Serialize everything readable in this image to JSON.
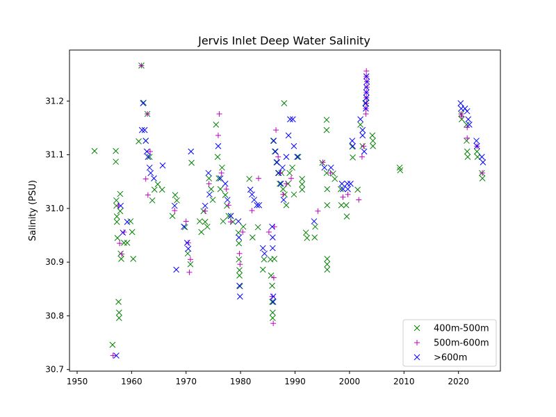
{
  "chart_data": {
    "type": "scatter",
    "title": "Jervis Inlet Deep Water Salinity",
    "xlabel": "",
    "ylabel": "Salinity (PSU)",
    "xlim": [
      1948.6,
      2027.7
    ],
    "ylim": [
      30.697,
      31.295
    ],
    "x_ticks": [
      1950,
      1960,
      1970,
      1980,
      1990,
      2000,
      2010,
      2020
    ],
    "y_ticks": [
      30.7,
      30.8,
      30.9,
      31.0,
      31.1,
      31.2
    ],
    "x_tick_labels": [
      "1950",
      "1960",
      "1970",
      "1980",
      "1990",
      "2000",
      "2010",
      "2020"
    ],
    "y_tick_labels": [
      "30.7",
      "30.8",
      "30.9",
      "31.0",
      "31.1",
      "31.2"
    ],
    "grid": false,
    "legend_position": "lower-right",
    "colors": {
      "green": "#008000",
      "magenta": "#bf00bf",
      "blue": "#0000ff"
    },
    "series": [
      {
        "name": "400m-500m",
        "marker": "x",
        "color": "#008000",
        "points": [
          [
            1953.2,
            31.107
          ],
          [
            1956.5,
            30.746
          ],
          [
            1957.1,
            31.107
          ],
          [
            1957.1,
            31.087
          ],
          [
            1957.2,
            31.015
          ],
          [
            1957.2,
            31.005
          ],
          [
            1957.3,
            30.985
          ],
          [
            1957.3,
            30.975
          ],
          [
            1957.4,
            30.945
          ],
          [
            1957.6,
            30.826
          ],
          [
            1957.7,
            30.806
          ],
          [
            1957.7,
            30.796
          ],
          [
            1957.9,
            31.027
          ],
          [
            1957.9,
            30.995
          ],
          [
            1958.0,
            30.916
          ],
          [
            1958.1,
            30.906
          ],
          [
            1958.6,
            30.936
          ],
          [
            1959.2,
            30.936
          ],
          [
            1959.8,
            30.976
          ],
          [
            1960.1,
            30.956
          ],
          [
            1960.3,
            30.906
          ],
          [
            1961.3,
            31.125
          ],
          [
            1961.8,
            31.266
          ],
          [
            1962.2,
            31.197
          ],
          [
            1962.6,
            31.126
          ],
          [
            1962.9,
            31.176
          ],
          [
            1963.3,
            31.096
          ],
          [
            1963.8,
            31.015
          ],
          [
            1964.2,
            31.035
          ],
          [
            1964.8,
            31.045
          ],
          [
            1965.6,
            31.035
          ],
          [
            1967.5,
            30.986
          ],
          [
            1968.0,
            31.025
          ],
          [
            1968.3,
            31.015
          ],
          [
            1969.8,
            30.965
          ],
          [
            1970.3,
            30.916
          ],
          [
            1970.8,
            30.896
          ],
          [
            1971.0,
            31.085
          ],
          [
            1972.5,
            30.976
          ],
          [
            1972.8,
            30.956
          ],
          [
            1973.2,
            30.995
          ],
          [
            1973.5,
            30.975
          ],
          [
            1973.9,
            30.966
          ],
          [
            1974.2,
            31.056
          ],
          [
            1974.6,
            31.036
          ],
          [
            1974.9,
            31.016
          ],
          [
            1975.5,
            31.156
          ],
          [
            1975.8,
            31.096
          ],
          [
            1976.0,
            31.056
          ],
          [
            1976.3,
            31.036
          ],
          [
            1976.6,
            31.076
          ],
          [
            1976.8,
            30.976
          ],
          [
            1977.2,
            31.025
          ],
          [
            1977.5,
            31.005
          ],
          [
            1977.8,
            30.986
          ],
          [
            1978.2,
            30.986
          ],
          [
            1978.6,
            30.975
          ],
          [
            1979.6,
            30.955
          ],
          [
            1979.7,
            30.935
          ],
          [
            1979.7,
            30.905
          ],
          [
            1979.8,
            30.885
          ],
          [
            1979.8,
            30.875
          ],
          [
            1979.9,
            30.855
          ],
          [
            1980.5,
            30.966
          ],
          [
            1981.6,
            31.055
          ],
          [
            1982.2,
            30.946
          ],
          [
            1983.2,
            30.965
          ],
          [
            1984.1,
            30.886
          ],
          [
            1984.3,
            30.905
          ],
          [
            1985.5,
            30.905
          ],
          [
            1985.6,
            30.875
          ],
          [
            1985.8,
            30.856
          ],
          [
            1985.8,
            30.826
          ],
          [
            1985.9,
            30.806
          ],
          [
            1985.9,
            30.796
          ],
          [
            1986.2,
            30.906
          ],
          [
            1986.0,
            31.126
          ],
          [
            1986.3,
            31.106
          ],
          [
            1986.6,
            31.086
          ],
          [
            1986.9,
            31.066
          ],
          [
            1987.2,
            31.046
          ],
          [
            1987.5,
            31.066
          ],
          [
            1987.8,
            31.036
          ],
          [
            1988.0,
            31.196
          ],
          [
            1988.1,
            31.026
          ],
          [
            1988.4,
            31.006
          ],
          [
            1988.7,
            31.046
          ],
          [
            1989.0,
            31.066
          ],
          [
            1989.5,
            31.076
          ],
          [
            1989.8,
            31.026
          ],
          [
            1990.6,
            31.096
          ],
          [
            1991.3,
            31.055
          ],
          [
            1991.3,
            31.045
          ],
          [
            1991.3,
            31.035
          ],
          [
            1992.0,
            30.955
          ],
          [
            1992.2,
            30.945
          ],
          [
            1993.6,
            30.946
          ],
          [
            1993.7,
            30.966
          ],
          [
            1995.0,
            31.085
          ],
          [
            1995.8,
            31.165
          ],
          [
            1995.8,
            31.146
          ],
          [
            1995.8,
            31.066
          ],
          [
            1995.9,
            31.036
          ],
          [
            1995.9,
            31.006
          ],
          [
            1995.9,
            30.906
          ],
          [
            1995.9,
            30.896
          ],
          [
            1995.9,
            30.886
          ],
          [
            1997.0,
            31.065
          ],
          [
            1997.3,
            31.055
          ],
          [
            1998.4,
            31.036
          ],
          [
            1998.5,
            31.006
          ],
          [
            1999.4,
            31.006
          ],
          [
            1999.5,
            30.985
          ],
          [
            2000.5,
            31.115
          ],
          [
            2000.6,
            31.095
          ],
          [
            2001.5,
            31.035
          ],
          [
            2002.0,
            31.156
          ],
          [
            2002.4,
            31.116
          ],
          [
            2002.9,
            31.196
          ],
          [
            2003.1,
            31.206
          ],
          [
            2004.2,
            31.136
          ],
          [
            2004.3,
            31.126
          ],
          [
            2004.3,
            31.116
          ],
          [
            2009.2,
            31.076
          ],
          [
            2009.3,
            31.071
          ],
          [
            2020.5,
            31.176
          ],
          [
            2020.6,
            31.166
          ],
          [
            2021.5,
            31.156
          ],
          [
            2021.5,
            31.126
          ],
          [
            2021.6,
            31.106
          ],
          [
            2021.7,
            31.096
          ],
          [
            2023.4,
            31.106
          ],
          [
            2023.5,
            31.096
          ],
          [
            2024.3,
            31.066
          ],
          [
            2024.4,
            31.056
          ]
        ]
      },
      {
        "name": "500m-600m",
        "marker": "+",
        "color": "#bf00bf",
        "points": [
          [
            1956.6,
            30.726
          ],
          [
            1957.6,
            31.005
          ],
          [
            1957.8,
            30.935
          ],
          [
            1958.2,
            30.915
          ],
          [
            1958.6,
            30.956
          ],
          [
            1961.8,
            31.266
          ],
          [
            1962.6,
            31.055
          ],
          [
            1962.9,
            31.176
          ],
          [
            1963.0,
            31.025
          ],
          [
            1963.4,
            31.106
          ],
          [
            1967.9,
            30.996
          ],
          [
            1970.0,
            30.976
          ],
          [
            1970.4,
            30.936
          ],
          [
            1970.6,
            30.881
          ],
          [
            1970.8,
            30.905
          ],
          [
            1973.5,
            30.995
          ],
          [
            1974.2,
            31.046
          ],
          [
            1975.9,
            31.136
          ],
          [
            1976.1,
            31.176
          ],
          [
            1976.5,
            31.066
          ],
          [
            1977.4,
            31.036
          ],
          [
            1977.8,
            31.006
          ],
          [
            1978.2,
            30.975
          ],
          [
            1979.8,
            30.916
          ],
          [
            1979.9,
            30.896
          ],
          [
            1980.4,
            30.956
          ],
          [
            1982.1,
            30.996
          ],
          [
            1983.3,
            31.056
          ],
          [
            1985.2,
            30.956
          ],
          [
            1985.8,
            30.836
          ],
          [
            1986.0,
            30.786
          ],
          [
            1986.1,
            30.871
          ],
          [
            1986.2,
            30.966
          ],
          [
            1986.5,
            31.146
          ],
          [
            1986.9,
            31.096
          ],
          [
            1987.3,
            31.066
          ],
          [
            1987.8,
            31.026
          ],
          [
            1988.4,
            31.046
          ],
          [
            1989.3,
            31.056
          ],
          [
            1994.2,
            30.995
          ],
          [
            1995.1,
            31.086
          ],
          [
            1996.5,
            31.066
          ],
          [
            1998.8,
            31.021
          ],
          [
            1999.7,
            31.026
          ],
          [
            2001.7,
            31.016
          ],
          [
            2002.3,
            31.096
          ],
          [
            2002.6,
            31.116
          ],
          [
            2003.0,
            31.176
          ],
          [
            2003.0,
            31.186
          ],
          [
            2003.1,
            31.196
          ],
          [
            2003.1,
            31.206
          ],
          [
            2003.1,
            31.216
          ],
          [
            2003.2,
            31.226
          ],
          [
            2003.2,
            31.236
          ],
          [
            2003.1,
            31.246
          ],
          [
            2003.1,
            31.256
          ],
          [
            2020.5,
            31.176
          ],
          [
            2020.6,
            31.171
          ],
          [
            2021.6,
            31.151
          ],
          [
            2021.6,
            31.131
          ],
          [
            2023.4,
            31.116
          ],
          [
            2024.4,
            31.066
          ]
        ]
      },
      {
        "name": ">600m",
        "marker": "x",
        "color": "#0000ff",
        "points": [
          [
            1957.2,
            30.726
          ],
          [
            1958.0,
            31.005
          ],
          [
            1958.4,
            30.955
          ],
          [
            1959.2,
            30.975
          ],
          [
            1961.9,
            31.146
          ],
          [
            1962.1,
            31.196
          ],
          [
            1962.4,
            31.146
          ],
          [
            1962.6,
            31.126
          ],
          [
            1962.8,
            31.106
          ],
          [
            1963.0,
            31.096
          ],
          [
            1963.3,
            31.076
          ],
          [
            1963.5,
            31.066
          ],
          [
            1964.1,
            31.056
          ],
          [
            1965.7,
            31.08
          ],
          [
            1967.9,
            31.005
          ],
          [
            1968.2,
            30.886
          ],
          [
            1969.6,
            30.966
          ],
          [
            1970.2,
            30.936
          ],
          [
            1970.4,
            30.925
          ],
          [
            1970.9,
            31.106
          ],
          [
            1973.5,
            31.005
          ],
          [
            1974.1,
            31.066
          ],
          [
            1974.3,
            31.026
          ],
          [
            1975.9,
            31.116
          ],
          [
            1976.3,
            31.056
          ],
          [
            1977.2,
            31.046
          ],
          [
            1977.6,
            31.016
          ],
          [
            1978.2,
            30.986
          ],
          [
            1979.6,
            30.976
          ],
          [
            1979.7,
            30.946
          ],
          [
            1979.8,
            30.856
          ],
          [
            1979.9,
            30.836
          ],
          [
            1981.8,
            31.035
          ],
          [
            1982.1,
            31.026
          ],
          [
            1982.5,
            31.016
          ],
          [
            1983.0,
            31.006
          ],
          [
            1983.4,
            31.006
          ],
          [
            1984.1,
            30.926
          ],
          [
            1984.4,
            30.916
          ],
          [
            1985.8,
            30.966
          ],
          [
            1985.9,
            30.946
          ],
          [
            1985.9,
            30.926
          ],
          [
            1986.0,
            30.836
          ],
          [
            1986.0,
            30.826
          ],
          [
            1986.1,
            31.126
          ],
          [
            1986.4,
            31.106
          ],
          [
            1986.7,
            31.086
          ],
          [
            1987.0,
            31.066
          ],
          [
            1987.4,
            31.046
          ],
          [
            1987.7,
            31.076
          ],
          [
            1987.9,
            31.016
          ],
          [
            1988.4,
            31.096
          ],
          [
            1988.8,
            31.136
          ],
          [
            1989.1,
            31.166
          ],
          [
            1989.6,
            31.166
          ],
          [
            1989.8,
            31.116
          ],
          [
            1990.4,
            31.096
          ],
          [
            1993.5,
            30.976
          ],
          [
            1995.4,
            31.076
          ],
          [
            1996.6,
            31.076
          ],
          [
            1998.6,
            31.046
          ],
          [
            1998.8,
            31.036
          ],
          [
            1999.6,
            31.046
          ],
          [
            1999.7,
            31.036
          ],
          [
            2000.2,
            31.046
          ],
          [
            2000.5,
            31.126
          ],
          [
            2000.6,
            31.116
          ],
          [
            2002.0,
            31.166
          ],
          [
            2002.4,
            31.146
          ],
          [
            2002.4,
            31.136
          ],
          [
            2002.7,
            31.106
          ],
          [
            2003.0,
            31.186
          ],
          [
            2003.0,
            31.196
          ],
          [
            2003.1,
            31.206
          ],
          [
            2003.1,
            31.216
          ],
          [
            2003.1,
            31.226
          ],
          [
            2003.2,
            31.236
          ],
          [
            2003.1,
            31.246
          ],
          [
            2020.4,
            31.196
          ],
          [
            2020.5,
            31.186
          ],
          [
            2021.2,
            31.186
          ],
          [
            2021.6,
            31.181
          ],
          [
            2021.8,
            31.166
          ],
          [
            2022.0,
            31.156
          ],
          [
            2023.3,
            31.126
          ],
          [
            2023.4,
            31.116
          ],
          [
            2024.3,
            31.096
          ],
          [
            2024.5,
            31.086
          ]
        ]
      }
    ]
  }
}
